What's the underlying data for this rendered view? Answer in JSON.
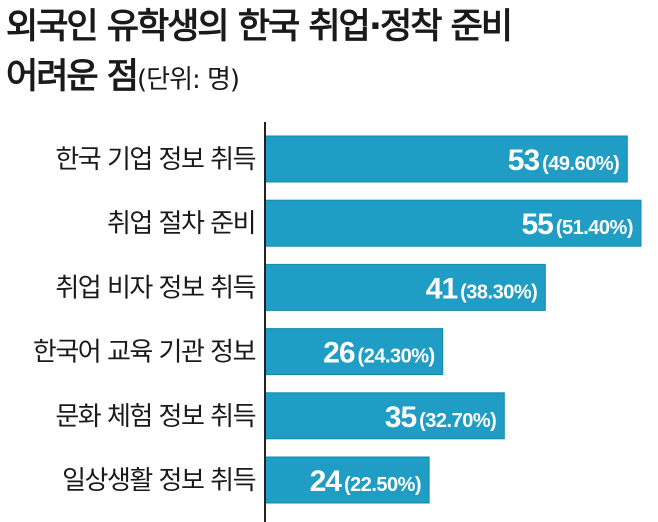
{
  "title": {
    "line1": "외국인 유학생의 한국 취업·정착 준비",
    "line2": "어려운 점",
    "unit": "(단위: 명)"
  },
  "colors": {
    "bar": "#1f9dc4",
    "bar_edge": "#1588ad",
    "axis": "#222222",
    "text": "#1a1a1a",
    "value_text": "#ffffff"
  },
  "chart_data": {
    "type": "bar",
    "orientation": "horizontal",
    "title": "외국인 유학생의 한국 취업·정착 준비 어려운 점",
    "unit": "명",
    "categories": [
      "한국 기업 정보 취득",
      "취업 절차 준비",
      "취업 비자 정보 취득",
      "한국어 교육 기관 정보",
      "문화 체험 정보 취득",
      "일상생활 정보 취득"
    ],
    "values": [
      53,
      55,
      41,
      26,
      35,
      24
    ],
    "percents": [
      "(49.60%)",
      "(51.40%)",
      "(38.30%)",
      "(24.30%)",
      "(32.70%)",
      "(22.50%)"
    ],
    "xlim": [
      0,
      55
    ],
    "grid": false
  }
}
